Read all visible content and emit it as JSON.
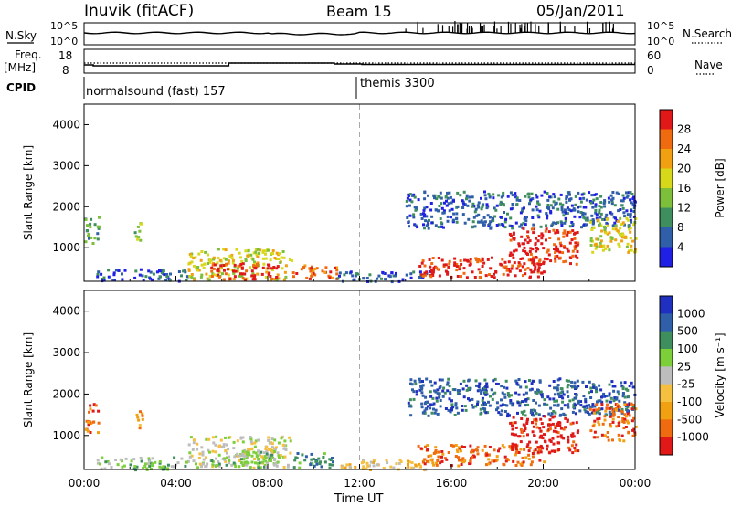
{
  "header": {
    "station": "Inuvik (fitACF)",
    "beam": "Beam 15",
    "date": "05/Jan/2011"
  },
  "rows": {
    "nsky_label": "N.Sky",
    "nsky_ticks": [
      "10^5",
      "10^0"
    ],
    "nsearch_label": "N.Search",
    "nsearch_ticks": [
      "10^5",
      "10^0"
    ],
    "freq_label": "Freq.",
    "freq_unit": "[MHz]",
    "freq_ticks": [
      "18",
      "8"
    ],
    "nave_label": "Nave",
    "nave_ticks": [
      "60",
      "0"
    ],
    "cpid_label": "CPID",
    "cpid_segments": [
      {
        "label": "normalsound (fast) 157",
        "start_hour": 0,
        "end_hour": 12
      },
      {
        "label": "themis 3300",
        "start_hour": 12,
        "end_hour": 24
      }
    ]
  },
  "colors": {
    "power": [
      "#1f1fe6",
      "#2e5fa8",
      "#3f8f5e",
      "#7dbf3a",
      "#d8d81a",
      "#f0a010",
      "#f06b10",
      "#e01818"
    ],
    "velocity": [
      "#e01818",
      "#f06b10",
      "#f0a010",
      "#f5c040",
      "#bdbdbd",
      "#7dcf3a",
      "#3f8f5e",
      "#2e5fa8",
      "#1f2fc0"
    ]
  },
  "chart_data": [
    {
      "type": "heatmap",
      "name": "power",
      "ylabel": "Slant Range [km]",
      "yticks": [
        1000,
        2000,
        3000,
        4000
      ],
      "ylim": [
        180,
        4500
      ],
      "xlim": [
        0,
        24
      ],
      "colorbar": {
        "label": "Power [dB]",
        "ticks": [
          "28",
          "24",
          "20",
          "16",
          "12",
          "8",
          "4"
        ],
        "levels": [
          0,
          4,
          8,
          12,
          16,
          20,
          24,
          28,
          32
        ]
      },
      "regions": [
        {
          "t0": 0.0,
          "t1": 0.6,
          "r0": 1100,
          "r1": 1800,
          "level": 2
        },
        {
          "t0": 2.1,
          "t1": 2.5,
          "r0": 1200,
          "r1": 1650,
          "level": 3
        },
        {
          "t0": 0.5,
          "t1": 4.5,
          "r0": 200,
          "r1": 500,
          "level": 1
        },
        {
          "t0": 4.5,
          "t1": 9.0,
          "r0": 250,
          "r1": 1000,
          "level": 4
        },
        {
          "t0": 5.5,
          "t1": 8.5,
          "r0": 250,
          "r1": 650,
          "level": 7
        },
        {
          "t0": 9.0,
          "t1": 11.0,
          "r0": 250,
          "r1": 600,
          "level": 6
        },
        {
          "t0": 11.0,
          "t1": 15.0,
          "r0": 200,
          "r1": 450,
          "level": 1
        },
        {
          "t0": 14.0,
          "t1": 24.0,
          "r0": 1500,
          "r1": 2400,
          "level": 1
        },
        {
          "t0": 14.5,
          "t1": 20.0,
          "r0": 300,
          "r1": 800,
          "level": 7
        },
        {
          "t0": 18.5,
          "t1": 21.5,
          "r0": 600,
          "r1": 1500,
          "level": 7
        },
        {
          "t0": 22.0,
          "t1": 24.0,
          "r0": 900,
          "r1": 1800,
          "level": 4
        }
      ]
    },
    {
      "type": "heatmap",
      "name": "velocity",
      "ylabel": "Slant Range [km]",
      "yticks": [
        1000,
        2000,
        3000,
        4000
      ],
      "ylim": [
        180,
        4500
      ],
      "xlim": [
        0,
        24
      ],
      "xticks": [
        "00:00",
        "04:00",
        "08:00",
        "12:00",
        "16:00",
        "20:00",
        "00:00"
      ],
      "xlabel": "Time UT",
      "colorbar": {
        "label": "Velocity [m s⁻¹]",
        "ticks": [
          "1000",
          "500",
          "100",
          "25",
          "-25",
          "-100",
          "-500",
          "-1000"
        ],
        "levels": [
          -2000,
          -1000,
          -500,
          -100,
          -25,
          25,
          100,
          500,
          1000,
          2000
        ]
      },
      "regions": [
        {
          "t0": 0.0,
          "t1": 0.6,
          "r0": 1100,
          "r1": 1800,
          "level": 1
        },
        {
          "t0": 2.1,
          "t1": 2.5,
          "r0": 1200,
          "r1": 1650,
          "level": 2
        },
        {
          "t0": 0.5,
          "t1": 4.5,
          "r0": 200,
          "r1": 500,
          "level": 5
        },
        {
          "t0": 4.5,
          "t1": 9.0,
          "r0": 250,
          "r1": 1000,
          "level": 4
        },
        {
          "t0": 5.5,
          "t1": 8.5,
          "r0": 250,
          "r1": 650,
          "level": 5
        },
        {
          "t0": 9.0,
          "t1": 11.0,
          "r0": 250,
          "r1": 600,
          "level": 6
        },
        {
          "t0": 11.0,
          "t1": 15.0,
          "r0": 200,
          "r1": 450,
          "level": 3
        },
        {
          "t0": 14.0,
          "t1": 24.0,
          "r0": 1500,
          "r1": 2400,
          "level": 7
        },
        {
          "t0": 14.5,
          "t1": 20.0,
          "r0": 300,
          "r1": 800,
          "level": 1
        },
        {
          "t0": 18.5,
          "t1": 21.5,
          "r0": 600,
          "r1": 1500,
          "level": 0
        },
        {
          "t0": 22.0,
          "t1": 24.0,
          "r0": 900,
          "r1": 1800,
          "level": 1
        }
      ]
    }
  ]
}
